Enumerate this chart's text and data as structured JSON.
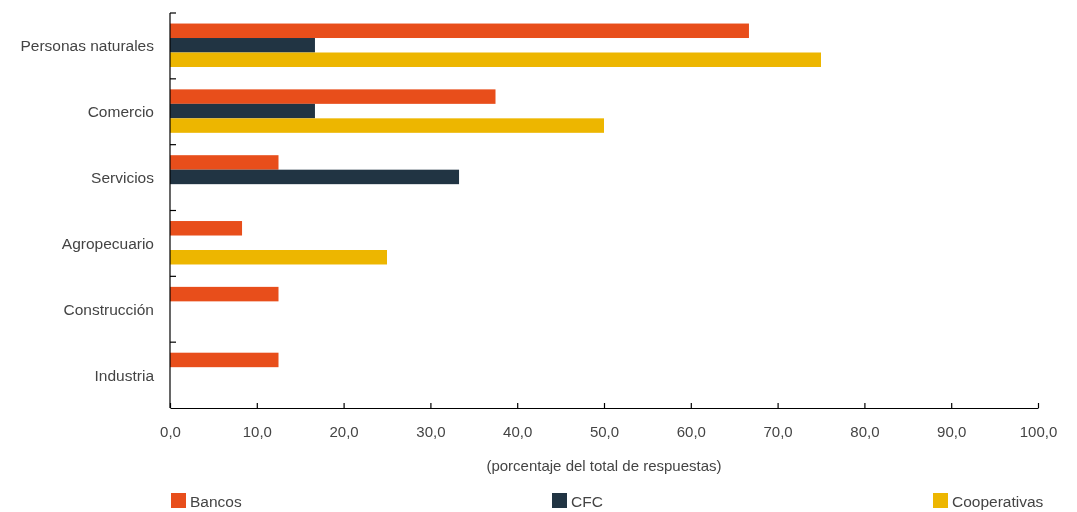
{
  "chart_data": {
    "type": "bar",
    "orientation": "horizontal",
    "categories": [
      "Personas naturales",
      "Comercio",
      "Servicios",
      "Agropecuario",
      "Construcción",
      "Industria"
    ],
    "series": [
      {
        "name": "Bancos",
        "color": "#e84e1b",
        "values": [
          66.7,
          37.5,
          12.5,
          8.3,
          12.5,
          12.5
        ]
      },
      {
        "name": "CFC",
        "color": "#213443",
        "values": [
          16.7,
          16.7,
          33.3,
          null,
          null,
          null
        ]
      },
      {
        "name": "Cooperativas",
        "color": "#edb600",
        "values": [
          75.0,
          50.0,
          null,
          25.0,
          null,
          null
        ]
      }
    ],
    "xlabel": "(porcentaje del total de respuestas)",
    "xlim": [
      0,
      100
    ],
    "xticks": [
      {
        "value": 0,
        "label": "0,0"
      },
      {
        "value": 10,
        "label": "10,0"
      },
      {
        "value": 20,
        "label": "20,0"
      },
      {
        "value": 30,
        "label": "30,0"
      },
      {
        "value": 40,
        "label": "40,0"
      },
      {
        "value": 50,
        "label": "50,0"
      },
      {
        "value": 60,
        "label": "60,0"
      },
      {
        "value": 70,
        "label": "70,0"
      },
      {
        "value": 80,
        "label": "80,0"
      },
      {
        "value": 90,
        "label": "90,0"
      },
      {
        "value": 100,
        "label": "100,0"
      }
    ],
    "grid": false,
    "legend": "bottom"
  }
}
